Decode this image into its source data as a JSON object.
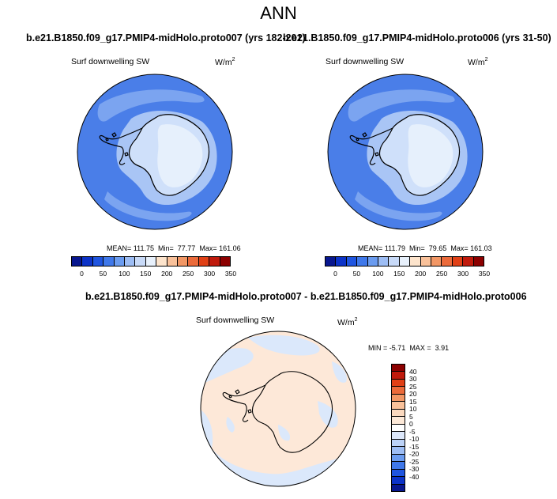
{
  "title": "ANN",
  "panels": [
    {
      "case_title": "b.e21.B1850.f09_g17.PMIP4-midHolo.proto007 (yrs 182-201)",
      "variable": "Surf downwelling SW",
      "units": "W/m",
      "units_exp": "2",
      "stats": {
        "mean_label": "MEAN=",
        "mean": "111.75",
        "min_label": "Min=",
        "min": "77.77",
        "max_label": "Max=",
        "max": "161.06"
      }
    },
    {
      "case_title": "b.e21.B1850.f09_g17.PMIP4-midHolo.proto006 (yrs 31-50)",
      "variable": "Surf downwelling SW",
      "units": "W/m",
      "units_exp": "2",
      "stats": {
        "mean_label": "MEAN=",
        "mean": "111.79",
        "min_label": "Min=",
        "min": "79.65",
        "max_label": "Max=",
        "max": "161.03"
      }
    }
  ],
  "diff_panel": {
    "title": "b.e21.B1850.f09_g17.PMIP4-midHolo.proto007 - b.e21.B1850.f09_g17.PMIP4-midHolo.proto006",
    "variable": "Surf downwelling SW",
    "units": "W/m",
    "units_exp": "2",
    "stats": {
      "min_label": "MIN =",
      "min": "-5.71",
      "max_label": "MAX =",
      "max": "3.91"
    }
  },
  "colorbar_main": {
    "colors": [
      "#08178f",
      "#0c33c8",
      "#1f55e0",
      "#3f78ea",
      "#6b9cf0",
      "#9dbdf4",
      "#c8daf8",
      "#e8f1fc",
      "#fde4cc",
      "#f9c19a",
      "#f29765",
      "#eb6a3a",
      "#e04016",
      "#c01a0c",
      "#8c0000"
    ],
    "labels": [
      "0",
      "50",
      "100",
      "150",
      "200",
      "250",
      "300",
      "350"
    ]
  },
  "colorbar_diff": {
    "colors": [
      "#8c0000",
      "#c01a0c",
      "#e04016",
      "#eb6a3a",
      "#f29765",
      "#f9c19a",
      "#fbd9bf",
      "#fde9d8",
      "#ffffff",
      "#dde8fb",
      "#bcd2f7",
      "#9dbdf4",
      "#6b9cf0",
      "#3f78ea",
      "#1f55e0",
      "#0c33c8",
      "#08178f"
    ],
    "labels": [
      "40",
      "30",
      "25",
      "20",
      "15",
      "10",
      "5",
      "0",
      "-5",
      "-10",
      "-15",
      "-20",
      "-25",
      "-30",
      "-40"
    ]
  },
  "map_colors": {
    "ocean": "#4a7ee8",
    "mid": "#7ba4f0",
    "light": "#a9c5f5",
    "pale": "#cfe0fa",
    "interior": "#e6f0fc",
    "diff_pos": "#fde8d8",
    "diff_neg": "#dbe8fb",
    "coast": "#000000"
  }
}
